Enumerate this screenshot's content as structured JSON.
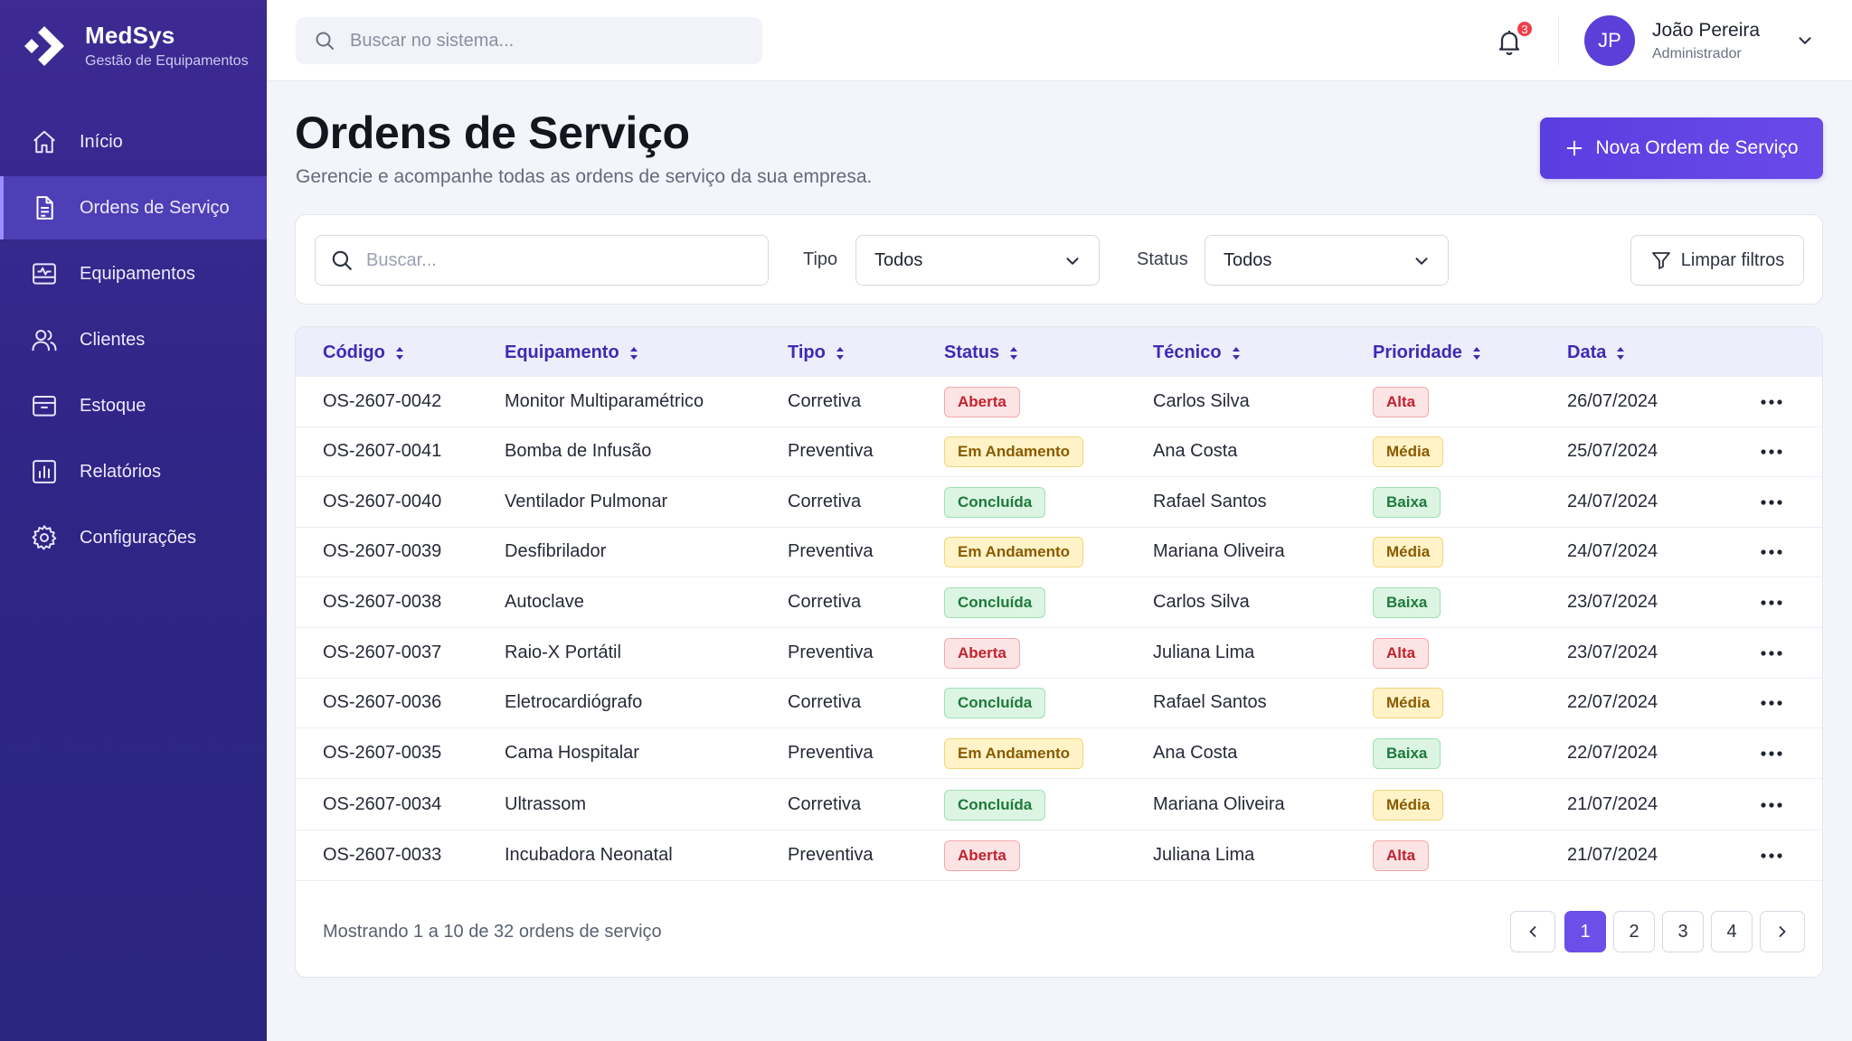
{
  "brand": {
    "name": "MedSys",
    "subtitle": "Gestão de Equipamentos"
  },
  "sidebar": {
    "items": [
      {
        "label": "Início",
        "icon": "home-icon",
        "active": false
      },
      {
        "label": "Ordens de Serviço",
        "icon": "document-icon",
        "active": true
      },
      {
        "label": "Equipamentos",
        "icon": "monitor-icon",
        "active": false
      },
      {
        "label": "Clientes",
        "icon": "users-icon",
        "active": false
      },
      {
        "label": "Estoque",
        "icon": "box-icon",
        "active": false
      },
      {
        "label": "Relatórios",
        "icon": "chart-icon",
        "active": false
      },
      {
        "label": "Configurações",
        "icon": "gear-icon",
        "active": false
      }
    ]
  },
  "topbar": {
    "search_placeholder": "Buscar no sistema...",
    "notifications_count": "3",
    "user": {
      "initials": "JP",
      "name": "João Pereira",
      "role": "Administrador"
    }
  },
  "header": {
    "title": "Ordens de Serviço",
    "subtitle": "Gerencie e acompanhe todas as ordens de serviço da sua empresa.",
    "new_button": "Nova Ordem de Serviço"
  },
  "filters": {
    "search_placeholder": "Buscar...",
    "tipo_label": "Tipo",
    "tipo_value": "Todos",
    "status_label": "Status",
    "status_value": "Todos",
    "clear_label": "Limpar filtros"
  },
  "table": {
    "columns": [
      "Código",
      "Equipamento",
      "Tipo",
      "Status",
      "Técnico",
      "Prioridade",
      "Data"
    ],
    "rows": [
      {
        "codigo": "OS-2607-0042",
        "equipamento": "Monitor Multiparamétrico",
        "tipo": "Corretiva",
        "status": "Aberta",
        "tecnico": "Carlos Silva",
        "prioridade": "Alta",
        "data": "26/07/2024"
      },
      {
        "codigo": "OS-2607-0041",
        "equipamento": "Bomba de Infusão",
        "tipo": "Preventiva",
        "status": "Em Andamento",
        "tecnico": "Ana Costa",
        "prioridade": "Média",
        "data": "25/07/2024"
      },
      {
        "codigo": "OS-2607-0040",
        "equipamento": "Ventilador Pulmonar",
        "tipo": "Corretiva",
        "status": "Concluída",
        "tecnico": "Rafael Santos",
        "prioridade": "Baixa",
        "data": "24/07/2024"
      },
      {
        "codigo": "OS-2607-0039",
        "equipamento": "Desfibrilador",
        "tipo": "Preventiva",
        "status": "Em Andamento",
        "tecnico": "Mariana Oliveira",
        "prioridade": "Média",
        "data": "24/07/2024"
      },
      {
        "codigo": "OS-2607-0038",
        "equipamento": "Autoclave",
        "tipo": "Corretiva",
        "status": "Concluída",
        "tecnico": "Carlos Silva",
        "prioridade": "Baixa",
        "data": "23/07/2024"
      },
      {
        "codigo": "OS-2607-0037",
        "equipamento": "Raio-X Portátil",
        "tipo": "Preventiva",
        "status": "Aberta",
        "tecnico": "Juliana Lima",
        "prioridade": "Alta",
        "data": "23/07/2024"
      },
      {
        "codigo": "OS-2607-0036",
        "equipamento": "Eletrocardiógrafo",
        "tipo": "Corretiva",
        "status": "Concluída",
        "tecnico": "Rafael Santos",
        "prioridade": "Média",
        "data": "22/07/2024"
      },
      {
        "codigo": "OS-2607-0035",
        "equipamento": "Cama Hospitalar",
        "tipo": "Preventiva",
        "status": "Em Andamento",
        "tecnico": "Ana Costa",
        "prioridade": "Baixa",
        "data": "22/07/2024"
      },
      {
        "codigo": "OS-2607-0034",
        "equipamento": "Ultrassom",
        "tipo": "Corretiva",
        "status": "Concluída",
        "tecnico": "Mariana Oliveira",
        "prioridade": "Média",
        "data": "21/07/2024"
      },
      {
        "codigo": "OS-2607-0033",
        "equipamento": "Incubadora Neonatal",
        "tipo": "Preventiva",
        "status": "Aberta",
        "tecnico": "Juliana Lima",
        "prioridade": "Alta",
        "data": "21/07/2024"
      }
    ],
    "footer_text": "Mostrando 1 a 10 de 32 ordens de serviço",
    "pages": [
      "1",
      "2",
      "3",
      "4"
    ],
    "current_page": "1"
  },
  "colors": {
    "sidebar_bg": "#2e2585",
    "accent": "#5a3ee0",
    "header_text": "#3b2cb4",
    "status_red": "#c1232f",
    "status_yellow": "#8a5a00",
    "status_green": "#1d7a3a"
  }
}
